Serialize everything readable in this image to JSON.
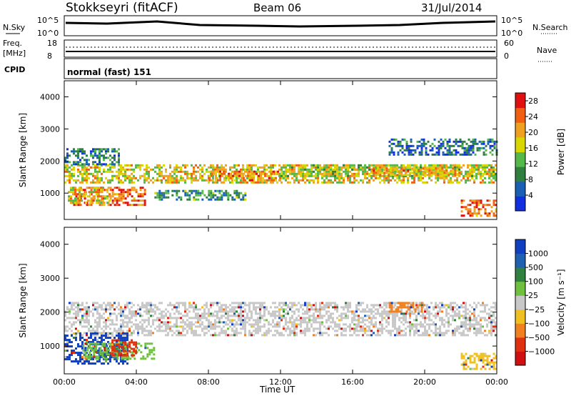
{
  "header": {
    "station": "Stokkseyri (fitACF)",
    "beam": "Beam 06",
    "date": "31/Jul/2014"
  },
  "panels": {
    "nsky": {
      "left_label": "N.Sky",
      "right_label": "N.Search",
      "ticks": [
        "10^5",
        "10^0"
      ]
    },
    "freq": {
      "left_label_1": "Freq.",
      "left_label_2": "[MHz]",
      "left_ticks": [
        "18",
        "8"
      ],
      "right_label": "Nave",
      "right_ticks": [
        "60",
        "0"
      ]
    },
    "cpid": {
      "label": "CPID",
      "value": "normal (fast)  151"
    }
  },
  "chart_data": [
    {
      "type": "heatmap",
      "title": "",
      "xlabel": "Time UT",
      "ylabel": "Slant Range [km]",
      "xlim": [
        0,
        24
      ],
      "ylim": [
        180,
        4500
      ],
      "x_ticks": [
        "00:00",
        "04:00",
        "08:00",
        "12:00",
        "16:00",
        "20:00",
        "00:00"
      ],
      "y_ticks": [
        1000,
        2000,
        3000,
        4000
      ],
      "colorbar": {
        "label": "Power [dB]",
        "ticks": [
          4,
          8,
          12,
          16,
          20,
          24,
          28
        ],
        "range": [
          0,
          30
        ],
        "colors": [
          "#1030e0",
          "#1a5fb4",
          "#2f7f3f",
          "#54b948",
          "#d8d800",
          "#f0a020",
          "#f06010",
          "#e01010"
        ]
      },
      "regions": [
        {
          "t": [
            0,
            24
          ],
          "r": [
            1300,
            1900
          ],
          "level": 18
        },
        {
          "t": [
            0,
            3
          ],
          "r": [
            1900,
            2400
          ],
          "level": 8
        },
        {
          "t": [
            0.5,
            4.5
          ],
          "r": [
            600,
            1200
          ],
          "level": 24
        },
        {
          "t": [
            0.2,
            2.5
          ],
          "r": [
            700,
            1200
          ],
          "level": 18
        },
        {
          "t": [
            5,
            10
          ],
          "r": [
            800,
            1100
          ],
          "level": 10
        },
        {
          "t": [
            8,
            12
          ],
          "r": [
            1400,
            1700
          ],
          "level": 22
        },
        {
          "t": [
            12,
            24
          ],
          "r": [
            1500,
            1900
          ],
          "level": 16
        },
        {
          "t": [
            17,
            22
          ],
          "r": [
            1550,
            1800
          ],
          "level": 21
        },
        {
          "t": [
            22,
            24
          ],
          "r": [
            300,
            800
          ],
          "level": 24
        },
        {
          "t": [
            18,
            24
          ],
          "r": [
            2200,
            2700
          ],
          "level": 7
        }
      ]
    },
    {
      "type": "heatmap",
      "title": "",
      "xlabel": "Time UT",
      "ylabel": "Slant Range [km]",
      "xlim": [
        0,
        24
      ],
      "ylim": [
        180,
        4500
      ],
      "x_ticks": [
        "00:00",
        "04:00",
        "08:00",
        "12:00",
        "16:00",
        "20:00",
        "00:00"
      ],
      "y_ticks": [
        1000,
        2000,
        3000,
        4000
      ],
      "colorbar": {
        "label": "Velocity [m s⁻¹]",
        "ticks": [
          "1000",
          "500",
          "100",
          "25",
          "−25",
          "−100",
          "−500",
          "−1000"
        ],
        "colors": [
          "#1040c0",
          "#2060b0",
          "#308040",
          "#70c040",
          "#c8c8c8",
          "#f0c020",
          "#f08020",
          "#e03010",
          "#d01010"
        ]
      },
      "regions": [
        {
          "t": [
            0,
            24
          ],
          "r": [
            1300,
            2300
          ],
          "color": "#c8c8c8"
        },
        {
          "t": [
            0,
            3.5
          ],
          "r": [
            500,
            1400
          ],
          "color": "#1040c0"
        },
        {
          "t": [
            1,
            5
          ],
          "r": [
            600,
            1100
          ],
          "color": "#70c040"
        },
        {
          "t": [
            2.5,
            4
          ],
          "r": [
            700,
            1200
          ],
          "color": "#e03010"
        },
        {
          "t": [
            18,
            20
          ],
          "r": [
            2000,
            2300
          ],
          "color": "#f08020"
        },
        {
          "t": [
            22,
            24
          ],
          "r": [
            300,
            800
          ],
          "color": "#f0c020"
        }
      ]
    }
  ]
}
